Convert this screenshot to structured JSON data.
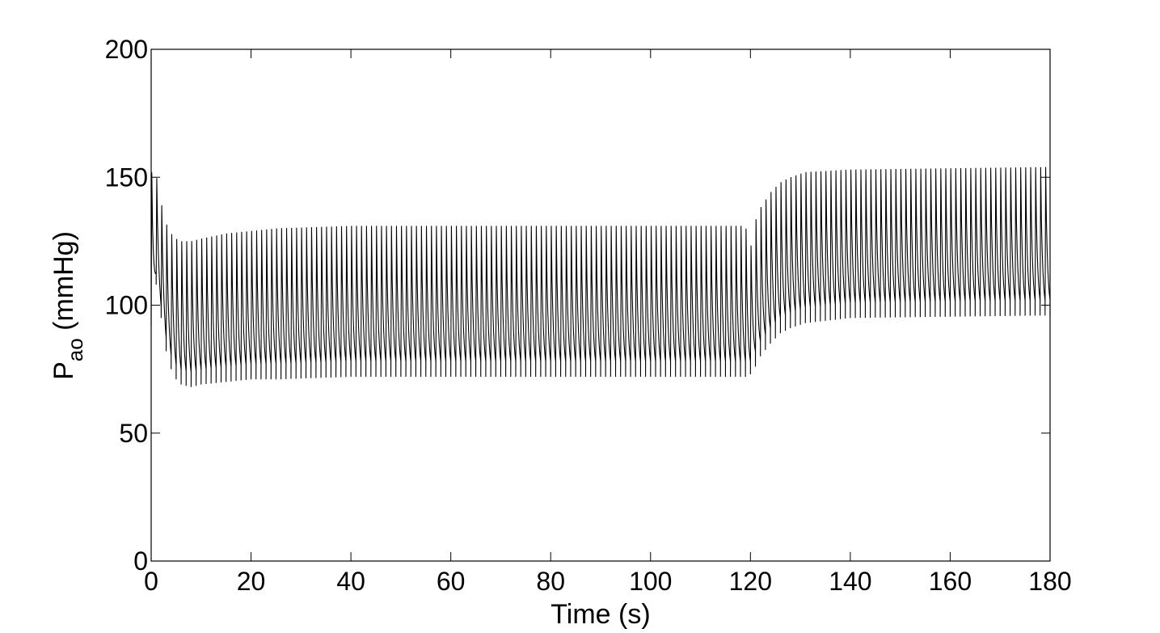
{
  "chart_data": {
    "type": "line",
    "title": "",
    "xlabel": "Time (s)",
    "ylabel": {
      "main": "P",
      "subscript": "ao",
      "unit": " (mmHg)"
    },
    "xlim": [
      0,
      180
    ],
    "ylim": [
      0,
      200
    ],
    "x_ticks": [
      0,
      20,
      40,
      60,
      80,
      100,
      120,
      140,
      160,
      180
    ],
    "y_ticks": [
      0,
      50,
      100,
      150,
      200
    ],
    "x_tick_labels": [
      "0",
      "20",
      "40",
      "60",
      "80",
      "100",
      "120",
      "140",
      "160",
      "180"
    ],
    "y_tick_labels": [
      "0",
      "50",
      "100",
      "150",
      "200"
    ],
    "grid": false,
    "legend": "none",
    "line_color": "#000000",
    "series": [
      {
        "signal": "pulsatile aortic pressure",
        "beat_period_s": 1.0,
        "envelope": [
          {
            "t": 0,
            "max": 152,
            "min": 92
          },
          {
            "t": 1,
            "max": 151,
            "min": 108
          },
          {
            "t": 2,
            "max": 140,
            "min": 95
          },
          {
            "t": 3,
            "max": 132,
            "min": 82
          },
          {
            "t": 4,
            "max": 128,
            "min": 75
          },
          {
            "t": 5,
            "max": 126,
            "min": 71
          },
          {
            "t": 6,
            "max": 125,
            "min": 69
          },
          {
            "t": 8,
            "max": 125,
            "min": 68
          },
          {
            "t": 10,
            "max": 126,
            "min": 69
          },
          {
            "t": 15,
            "max": 128,
            "min": 70
          },
          {
            "t": 20,
            "max": 129,
            "min": 71
          },
          {
            "t": 25,
            "max": 130,
            "min": 71
          },
          {
            "t": 40,
            "max": 131,
            "min": 72
          },
          {
            "t": 119,
            "max": 131,
            "min": 72
          },
          {
            "t": 120,
            "max": 122,
            "min": 73
          },
          {
            "t": 121,
            "max": 133,
            "min": 76
          },
          {
            "t": 122,
            "max": 138,
            "min": 80
          },
          {
            "t": 124,
            "max": 144,
            "min": 85
          },
          {
            "t": 126,
            "max": 148,
            "min": 89
          },
          {
            "t": 128,
            "max": 150,
            "min": 91
          },
          {
            "t": 131,
            "max": 152,
            "min": 93
          },
          {
            "t": 140,
            "max": 153,
            "min": 95
          },
          {
            "t": 180,
            "max": 154,
            "min": 96
          }
        ]
      }
    ]
  }
}
